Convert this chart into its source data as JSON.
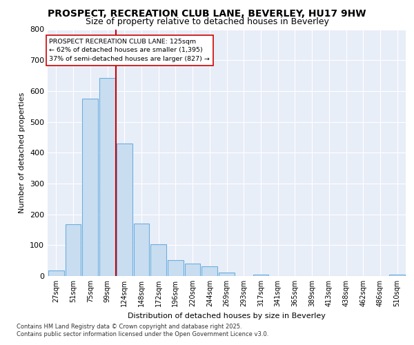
{
  "title1": "PROSPECT, RECREATION CLUB LANE, BEVERLEY, HU17 9HW",
  "title2": "Size of property relative to detached houses in Beverley",
  "xlabel": "Distribution of detached houses by size in Beverley",
  "ylabel": "Number of detached properties",
  "bar_labels": [
    "27sqm",
    "51sqm",
    "75sqm",
    "99sqm",
    "124sqm",
    "148sqm",
    "172sqm",
    "196sqm",
    "220sqm",
    "244sqm",
    "269sqm",
    "293sqm",
    "317sqm",
    "341sqm",
    "365sqm",
    "389sqm",
    "413sqm",
    "438sqm",
    "462sqm",
    "486sqm",
    "510sqm"
  ],
  "bar_values": [
    18,
    168,
    575,
    642,
    430,
    170,
    102,
    52,
    40,
    32,
    12,
    0,
    5,
    0,
    0,
    0,
    0,
    0,
    0,
    0,
    5
  ],
  "bar_color": "#c9ddf0",
  "bar_edge_color": "#6aaee0",
  "vline_index": 4,
  "vline_color": "#cc0000",
  "annotation_line1": "PROSPECT RECREATION CLUB LANE: 125sqm",
  "annotation_line2": "← 62% of detached houses are smaller (1,395)",
  "annotation_line3": "37% of semi-detached houses are larger (827) →",
  "annotation_box_edge": "#cc0000",
  "ylim": [
    0,
    800
  ],
  "yticks": [
    0,
    100,
    200,
    300,
    400,
    500,
    600,
    700,
    800
  ],
  "footer1": "Contains HM Land Registry data © Crown copyright and database right 2025.",
  "footer2": "Contains public sector information licensed under the Open Government Licence v3.0.",
  "bg_color": "#ffffff",
  "plot_bg_color": "#e8eef8",
  "grid_color": "#ffffff",
  "title1_fontsize": 10,
  "title2_fontsize": 9
}
